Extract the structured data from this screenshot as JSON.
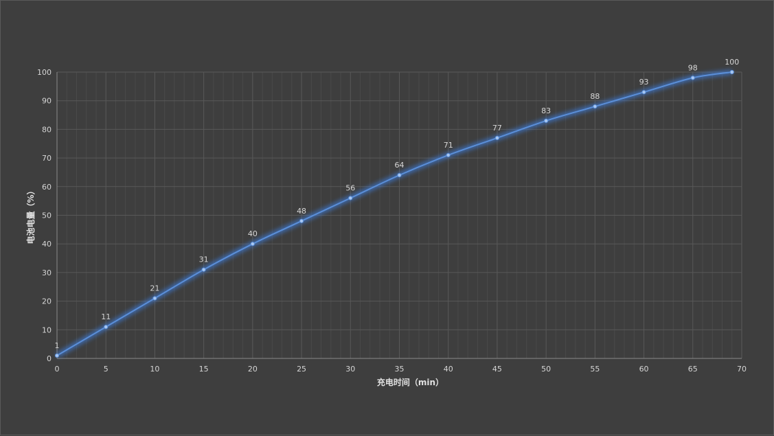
{
  "chart_data": {
    "type": "line",
    "title": "",
    "xlabel": "充电时间（min）",
    "ylabel": "电池电量（%）",
    "x": [
      0,
      5,
      10,
      15,
      20,
      25,
      30,
      35,
      40,
      45,
      50,
      55,
      60,
      65,
      69
    ],
    "series": [
      {
        "values": [
          1,
          11,
          21,
          31,
          40,
          48,
          56,
          64,
          71,
          77,
          83,
          88,
          93,
          98,
          100
        ]
      }
    ],
    "xlim": [
      0,
      70
    ],
    "ylim": [
      0,
      100
    ],
    "x_ticks": [
      0,
      5,
      10,
      15,
      20,
      25,
      30,
      35,
      40,
      45,
      50,
      55,
      60,
      65,
      70
    ],
    "y_ticks": [
      0,
      10,
      20,
      30,
      40,
      50,
      60,
      70,
      80,
      90,
      100
    ],
    "grid": true,
    "minor_grid": true,
    "smooth": true,
    "data_labels": true,
    "legend": "none",
    "colors": {
      "line": "#5b8fd8",
      "glow": "#3d7de0",
      "background": "#3e3e3e",
      "grid_major": "#595959",
      "grid_minor": "#4a4a4a"
    }
  }
}
